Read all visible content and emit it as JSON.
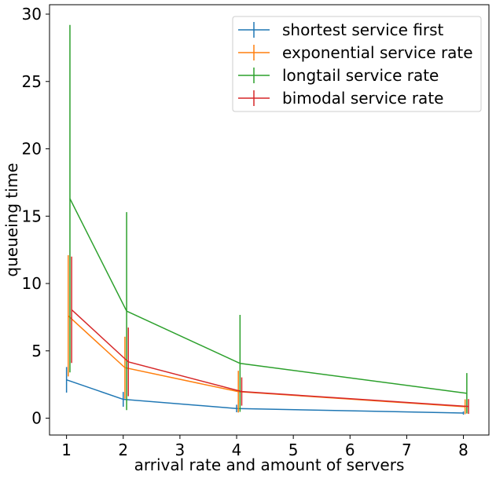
{
  "chart_data": {
    "type": "line",
    "xlabel": "arrival rate and amount of servers",
    "ylabel": "queueing time",
    "xlim": [
      0.7,
      8.45
    ],
    "ylim": [
      -1.25,
      30.7
    ],
    "xticks": [
      1,
      2,
      3,
      4,
      5,
      6,
      7,
      8
    ],
    "yticks": [
      0,
      5,
      10,
      15,
      20,
      25,
      30
    ],
    "grid": false,
    "legend_position": "top-right",
    "series": [
      {
        "name": "shortest service first",
        "color": "#1f77b4",
        "x": [
          1.0,
          2.0,
          4.0,
          8.0
        ],
        "y": [
          2.85,
          1.4,
          0.72,
          0.38
        ],
        "yerr": [
          0.95,
          0.55,
          0.28,
          0.12
        ]
      },
      {
        "name": "exponential service rate",
        "color": "#ff7f0e",
        "x": [
          1.03,
          2.03,
          4.03,
          8.03
        ],
        "y": [
          7.6,
          3.75,
          1.97,
          0.85
        ],
        "yerr": [
          4.5,
          2.3,
          1.55,
          0.55
        ]
      },
      {
        "name": "longtail service rate",
        "color": "#2ca02c",
        "x": [
          1.06,
          2.06,
          4.06,
          8.06
        ],
        "y": [
          16.3,
          7.95,
          4.07,
          1.85
        ],
        "yerr": [
          12.9,
          7.35,
          3.6,
          1.5
        ]
      },
      {
        "name": "bimodal service rate",
        "color": "#d62728",
        "x": [
          1.09,
          2.09,
          4.09,
          8.09
        ],
        "y": [
          8.05,
          4.18,
          1.98,
          0.87
        ],
        "yerr": [
          3.95,
          2.55,
          1.05,
          0.55
        ]
      }
    ]
  }
}
